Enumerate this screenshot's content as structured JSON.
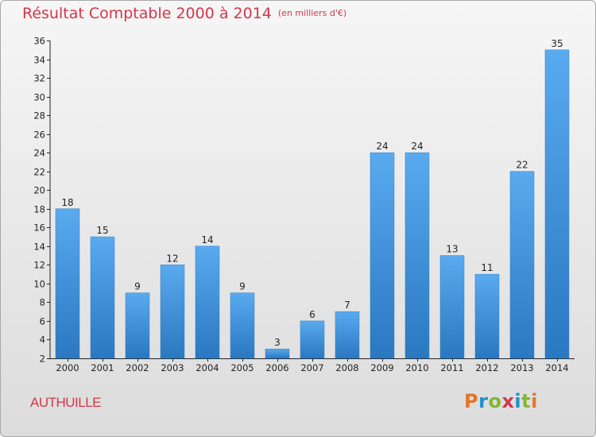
{
  "chart_data": {
    "type": "bar",
    "title": "Résultat Comptable 2000 à 2014",
    "subtitle": "(en milliers d'€)",
    "categories": [
      "2000",
      "2001",
      "2002",
      "2003",
      "2004",
      "2005",
      "2006",
      "2007",
      "2008",
      "2009",
      "2010",
      "2011",
      "2012",
      "2013",
      "2014"
    ],
    "values": [
      18,
      15,
      9,
      12,
      14,
      9,
      3,
      6,
      7,
      24,
      24,
      13,
      11,
      22,
      35
    ],
    "ylim": [
      2,
      36
    ],
    "yticks": [
      2,
      4,
      6,
      8,
      10,
      12,
      14,
      16,
      18,
      20,
      22,
      24,
      26,
      28,
      30,
      32,
      34,
      36
    ],
    "xlabel": "",
    "ylabel": "",
    "grid": false,
    "bar_color": "#3d8fd6"
  },
  "footer": {
    "commune": "AUTHUILLE",
    "logo_text": "Proxiti",
    "logo_colors": [
      "#e0762b",
      "#1f8fcf",
      "#84b537",
      "#d5364a",
      "#1f8fcf",
      "#84b537",
      "#e0762b"
    ]
  },
  "colors": {
    "title": "#d5364a",
    "axis": "#222222"
  }
}
